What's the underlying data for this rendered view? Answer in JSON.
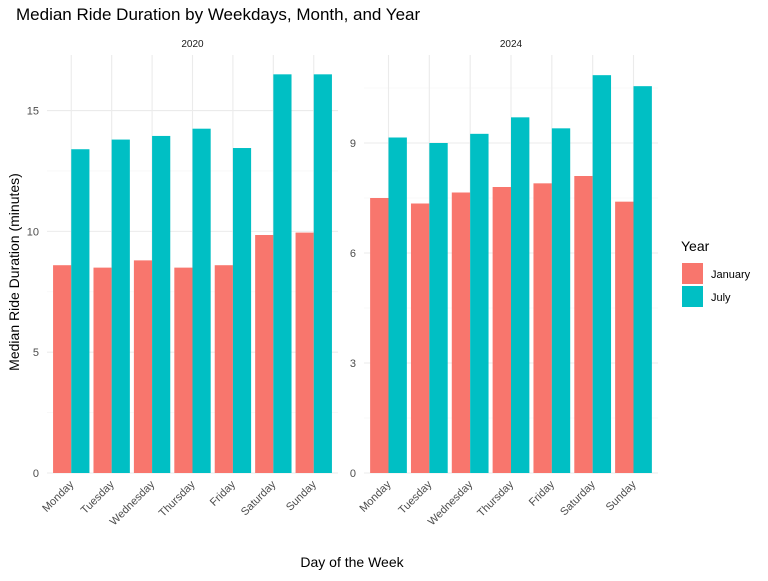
{
  "chart_data": {
    "type": "bar",
    "title": "Median Ride Duration by Weekdays, Month, and Year",
    "xlabel": "Day of the Week",
    "ylabel": "Median Ride Duration (minutes)",
    "categories": [
      "Monday",
      "Tuesday",
      "Wednesday",
      "Thursday",
      "Friday",
      "Saturday",
      "Sunday"
    ],
    "legend": {
      "title": "Year",
      "placement": "right",
      "entries": [
        {
          "label": "January",
          "color": "#F8766D"
        },
        {
          "label": "July",
          "color": "#00BFC4"
        }
      ]
    },
    "grid": true,
    "panels": [
      {
        "strip": "2020",
        "ylim": [
          0,
          17.3
        ],
        "yticks": [
          0,
          5,
          10,
          15
        ],
        "ytick_labels": [
          "0",
          "5",
          "10",
          "15"
        ],
        "series": [
          {
            "name": "January",
            "values": [
              8.6,
              8.5,
              8.8,
              8.5,
              8.6,
              9.85,
              9.95
            ]
          },
          {
            "name": "July",
            "values": [
              13.4,
              13.8,
              13.95,
              14.25,
              13.45,
              16.5,
              16.5
            ]
          }
        ]
      },
      {
        "strip": "2024",
        "ylim": [
          0,
          11.4
        ],
        "yticks": [
          0,
          3,
          6,
          9
        ],
        "ytick_labels": [
          "0",
          "3",
          "6",
          "9"
        ],
        "series": [
          {
            "name": "January",
            "values": [
              7.5,
              7.35,
              7.65,
              7.8,
              7.9,
              8.1,
              7.4
            ]
          },
          {
            "name": "July",
            "values": [
              9.15,
              9.0,
              9.25,
              9.7,
              9.4,
              10.85,
              10.55
            ]
          }
        ]
      }
    ]
  }
}
